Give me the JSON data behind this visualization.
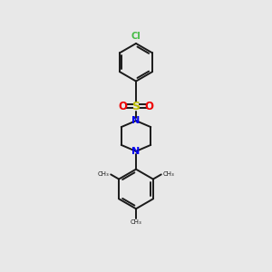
{
  "background_color": "#e8e8e8",
  "bond_color": "#1a1a1a",
  "cl_color": "#44bb44",
  "nitrogen_color": "#0000ee",
  "sulfur_color": "#bbbb00",
  "oxygen_color": "#ee0000",
  "bond_width": 1.4,
  "figsize": [
    3.0,
    3.0
  ],
  "dpi": 100,
  "xlim": [
    0,
    10
  ],
  "ylim": [
    0,
    15
  ]
}
